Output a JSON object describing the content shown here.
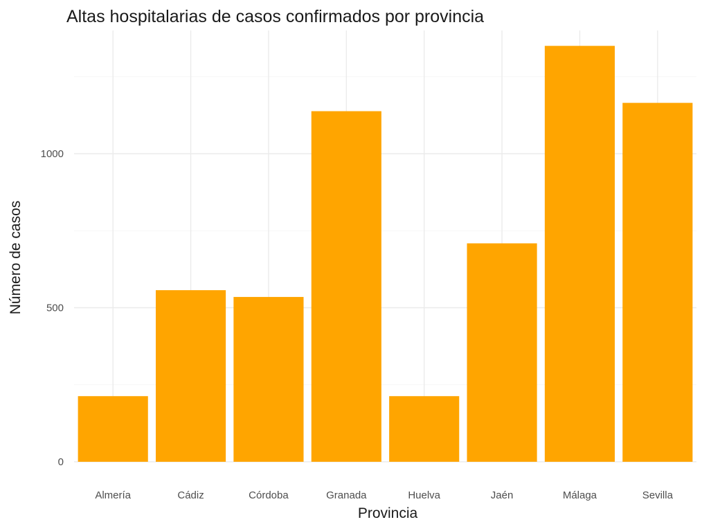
{
  "chart_data": {
    "type": "bar",
    "title": "Altas hospitalarias de casos confirmados por provincia",
    "xlabel": "Provincia",
    "ylabel": "Número de casos",
    "categories": [
      "Almería",
      "Cádiz",
      "Córdoba",
      "Granada",
      "Huelva",
      "Jaén",
      "Málaga",
      "Sevilla"
    ],
    "values": [
      213,
      557,
      535,
      1138,
      213,
      709,
      1350,
      1165
    ],
    "yticks": [
      0,
      500,
      1000
    ],
    "yticks_text": [
      "0",
      "500",
      "1000"
    ],
    "ylim": [
      0,
      1400
    ],
    "grid": true,
    "legend": "none",
    "bar_color": "#FFA500"
  }
}
